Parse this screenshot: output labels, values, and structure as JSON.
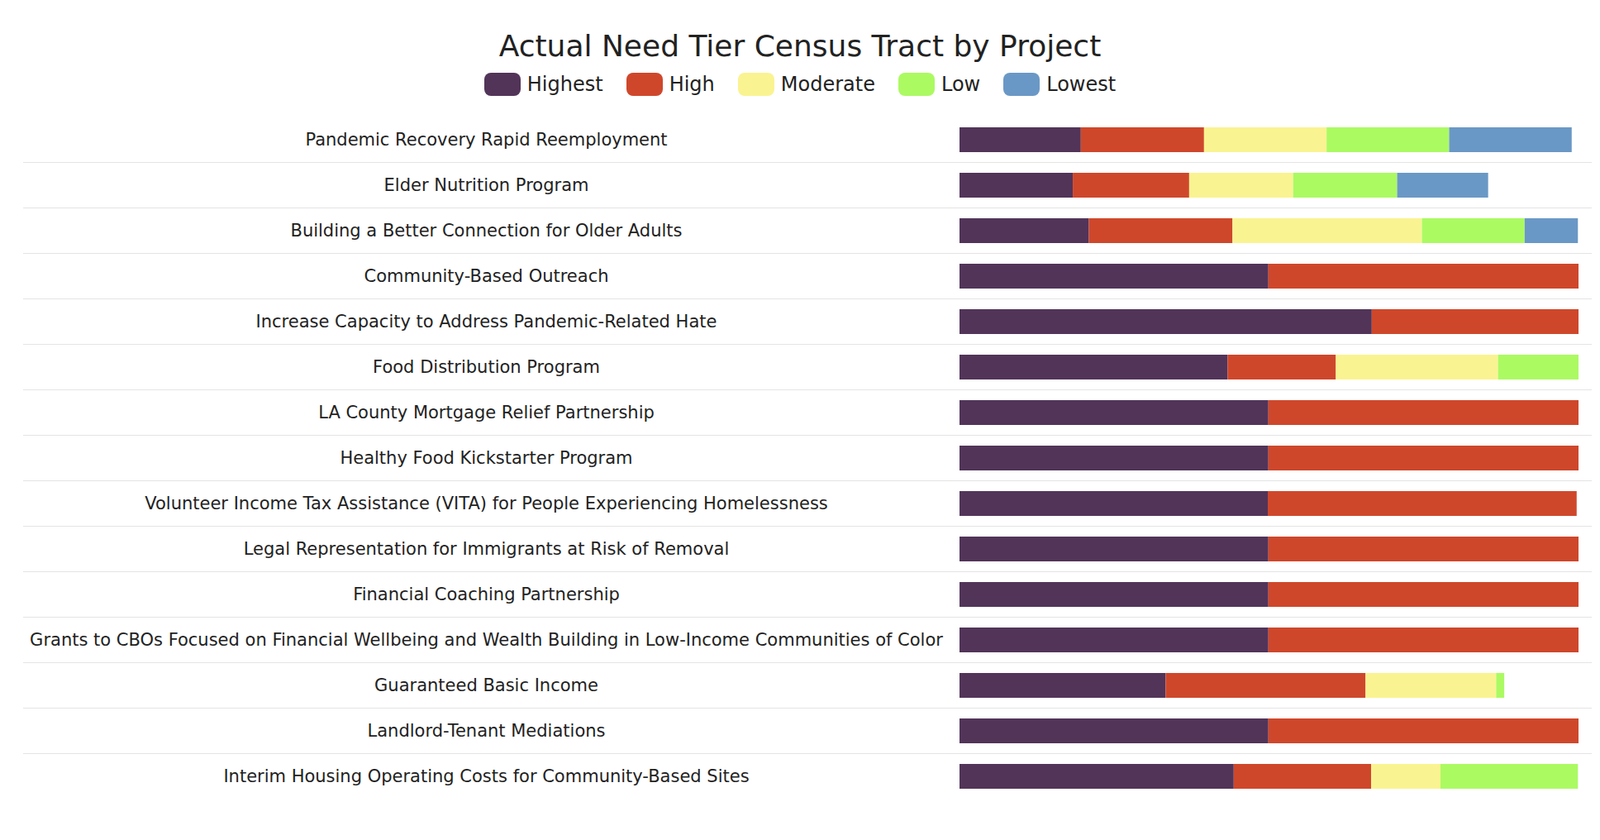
{
  "chart_data": {
    "type": "bar",
    "title": "Actual Need Tier Census Tract by Project",
    "orientation": "horizontal",
    "stacked": true,
    "legend": "top",
    "tick_labels": "y",
    "xlim": [
      0,
      100
    ],
    "categories": [
      "Pandemic Recovery Rapid Reemployment",
      "Elder Nutrition Program",
      "Building a Better Connection for Older Adults",
      "Community-Based Outreach",
      "Increase Capacity to Address Pandemic-Related Hate",
      "Food Distribution Program",
      "LA County Mortgage Relief Partnership",
      "Healthy Food Kickstarter Program",
      "Volunteer Income Tax Assistance (VITA) for People Experiencing Homelessness",
      "Legal Representation for Immigrants at Risk of Removal",
      "Financial Coaching Partnership",
      "Grants to CBOs Focused on Financial Wellbeing and Wealth Building in Low-Income Communities of Color",
      "Guaranteed Basic Income",
      "Landlord-Tenant Mediations",
      "Interim Housing Operating Costs for Community-Based Sites"
    ],
    "series": [
      {
        "name": "Highest",
        "color": "#523459",
        "values": [
          19.6,
          18.3,
          20.9,
          49.9,
          66.6,
          43.3,
          49.9,
          49.9,
          49.8,
          49.9,
          49.9,
          49.9,
          33.3,
          49.9,
          44.3
        ]
      },
      {
        "name": "High",
        "color": "#cf472b",
        "values": [
          19.9,
          18.8,
          23.2,
          50.1,
          33.4,
          17.5,
          50.1,
          50.1,
          49.9,
          50.1,
          50.1,
          50.1,
          32.3,
          50.1,
          22.2
        ]
      },
      {
        "name": "Moderate",
        "color": "#faf391",
        "values": [
          19.8,
          16.8,
          30.6,
          0,
          0,
          26.2,
          0,
          0,
          0,
          0,
          0,
          0,
          21.1,
          0,
          11.2
        ]
      },
      {
        "name": "Low",
        "color": "#abfa62",
        "values": [
          19.8,
          16.8,
          16.6,
          0,
          0,
          13.0,
          0,
          0,
          0,
          0,
          0,
          0,
          1.3,
          0,
          22.2
        ]
      },
      {
        "name": "Lowest",
        "color": "#6a98c6",
        "values": [
          19.8,
          14.7,
          8.6,
          0,
          0,
          0,
          0,
          0,
          0,
          0,
          0,
          0,
          0,
          0,
          0
        ]
      }
    ]
  }
}
